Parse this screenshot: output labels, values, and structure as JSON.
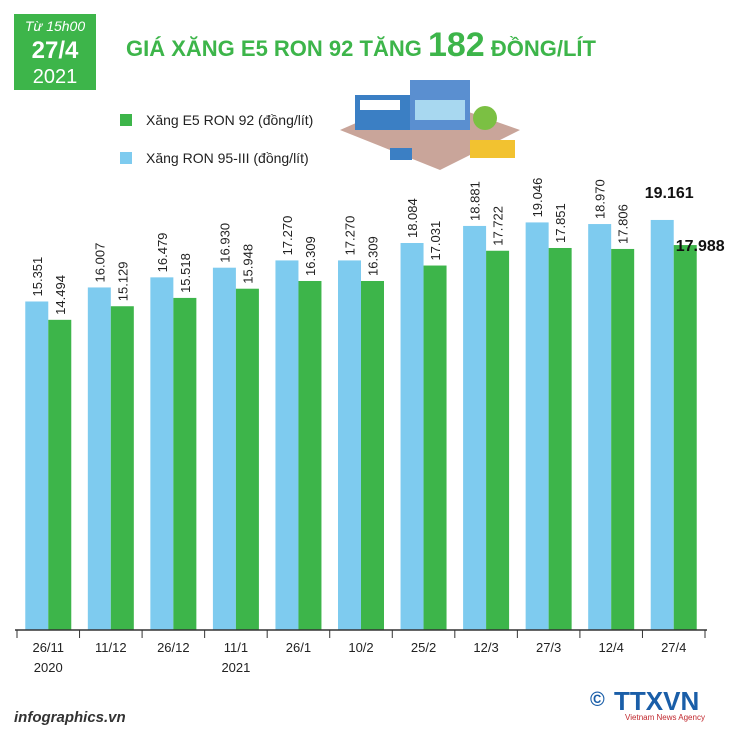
{
  "header": {
    "time": "Từ 15h00",
    "date": "27/4",
    "year": "2021"
  },
  "chart_data": {
    "type": "bar",
    "title_parts": [
      "GIÁ XĂNG E5 RON 92 TĂNG",
      "182",
      "ĐỒNG/LÍT"
    ],
    "categories": [
      "26/11",
      "11/12",
      "26/12",
      "11/1",
      "26/1",
      "10/2",
      "25/2",
      "12/3",
      "27/3",
      "12/4",
      "27/4"
    ],
    "category_years": [
      "2020",
      null,
      null,
      "2021",
      null,
      null,
      null,
      null,
      null,
      null,
      null
    ],
    "ylim": [
      0,
      20000
    ],
    "legend": "top-left",
    "series": [
      {
        "name": "Xăng E5 RON 92 (đồng/lít)",
        "color": "#3db54a",
        "values": [
          14494,
          15129,
          15518,
          15948,
          16309,
          16309,
          17031,
          17722,
          17851,
          17806,
          17988
        ],
        "value_labels": [
          "14.494",
          "15.129",
          "15.518",
          "15.948",
          "16.309",
          "16.309",
          "17.031",
          "17.722",
          "17.851",
          "17.806",
          "17.988"
        ]
      },
      {
        "name": "Xăng RON 95-III (đồng/lít)",
        "color": "#7ecbef",
        "values": [
          15351,
          16007,
          16479,
          16930,
          17270,
          17270,
          18084,
          18881,
          19046,
          18970,
          19161
        ],
        "value_labels": [
          "15.351",
          "16.007",
          "16.479",
          "16.930",
          "17.270",
          "17.270",
          "18.084",
          "18.881",
          "19.046",
          "18.970",
          "19.161"
        ]
      }
    ]
  },
  "footer": {
    "site": "infographics.vn",
    "copyright": "©",
    "brand": "TTXVN",
    "agency": "Vietnam News Agency"
  }
}
